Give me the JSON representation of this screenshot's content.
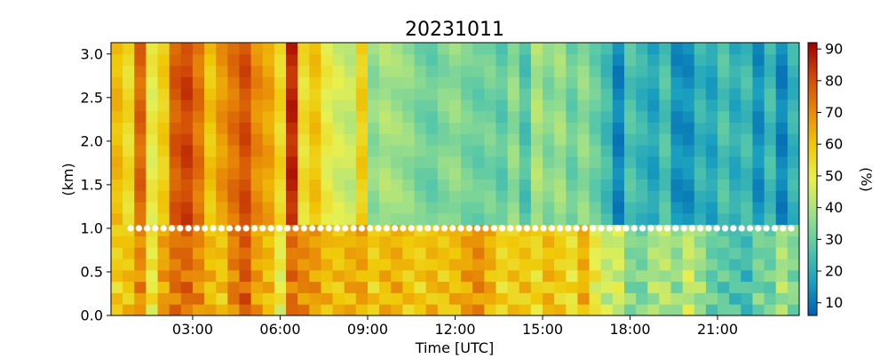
{
  "chart_data": {
    "type": "heatmap",
    "title": "20231011",
    "xlabel": "Time [UTC]",
    "ylabel": "(km)",
    "colorbar_label": "(%)",
    "x_ticks": [
      "03:00",
      "06:00",
      "09:00",
      "12:00",
      "15:00",
      "18:00",
      "21:00"
    ],
    "x_tick_hours": [
      3,
      6,
      9,
      12,
      15,
      18,
      21
    ],
    "xlim_hours": [
      0.2,
      23.8
    ],
    "y_ticks": [
      "0.0",
      "0.5",
      "1.0",
      "1.5",
      "2.0",
      "2.5",
      "3.0"
    ],
    "y_tick_values": [
      0.0,
      0.5,
      1.0,
      1.5,
      2.0,
      2.5,
      3.0
    ],
    "ylim": [
      0.0,
      3.13
    ],
    "colorbar_ticks": [
      "10",
      "20",
      "30",
      "40",
      "50",
      "60",
      "70",
      "80",
      "90"
    ],
    "colorbar_tick_values": [
      10,
      20,
      30,
      40,
      50,
      60,
      70,
      80,
      90
    ],
    "clim": [
      6,
      92
    ],
    "colormap": [
      "#0060b0",
      "#1aa0c0",
      "#58c8a8",
      "#a0e088",
      "#e8f050",
      "#f0c808",
      "#e88808",
      "#d04808",
      "#a00000"
    ],
    "marker_line": {
      "altitude_km": 1.0,
      "color": "#ffffff"
    },
    "hours": [
      0.4,
      0.8,
      1.2,
      1.6,
      2.0,
      2.4,
      2.8,
      3.2,
      3.6,
      4.0,
      4.4,
      4.8,
      5.2,
      5.6,
      6.0,
      6.4,
      6.8,
      7.2,
      7.6,
      8.0,
      8.4,
      8.8,
      9.2,
      9.6,
      10.0,
      10.4,
      10.8,
      11.2,
      11.6,
      12.0,
      12.4,
      12.8,
      13.2,
      13.6,
      14.0,
      14.4,
      14.8,
      15.2,
      15.6,
      16.0,
      16.4,
      16.8,
      17.2,
      17.6,
      18.0,
      18.4,
      18.8,
      19.2,
      19.6,
      20.0,
      20.4,
      20.8,
      21.2,
      21.6,
      22.0,
      22.4,
      22.8,
      23.2,
      23.6
    ],
    "upper_rh": [
      62,
      55,
      76,
      50,
      58,
      78,
      82,
      74,
      60,
      68,
      74,
      80,
      70,
      66,
      56,
      86,
      54,
      60,
      50,
      46,
      44,
      58,
      36,
      40,
      38,
      36,
      32,
      30,
      34,
      36,
      32,
      30,
      32,
      28,
      36,
      26,
      40,
      34,
      38,
      30,
      36,
      30,
      24,
      12,
      26,
      22,
      18,
      26,
      14,
      14,
      22,
      18,
      26,
      20,
      24,
      14,
      24,
      12,
      22
    ],
    "lower_rh": [
      58,
      60,
      70,
      52,
      66,
      74,
      76,
      70,
      62,
      60,
      72,
      78,
      66,
      62,
      50,
      74,
      70,
      68,
      62,
      60,
      64,
      66,
      58,
      62,
      64,
      60,
      58,
      62,
      60,
      62,
      66,
      70,
      64,
      56,
      58,
      60,
      56,
      62,
      58,
      54,
      64,
      50,
      44,
      46,
      34,
      32,
      40,
      42,
      36,
      44,
      38,
      30,
      28,
      26,
      24,
      32,
      30,
      40,
      34
    ]
  }
}
